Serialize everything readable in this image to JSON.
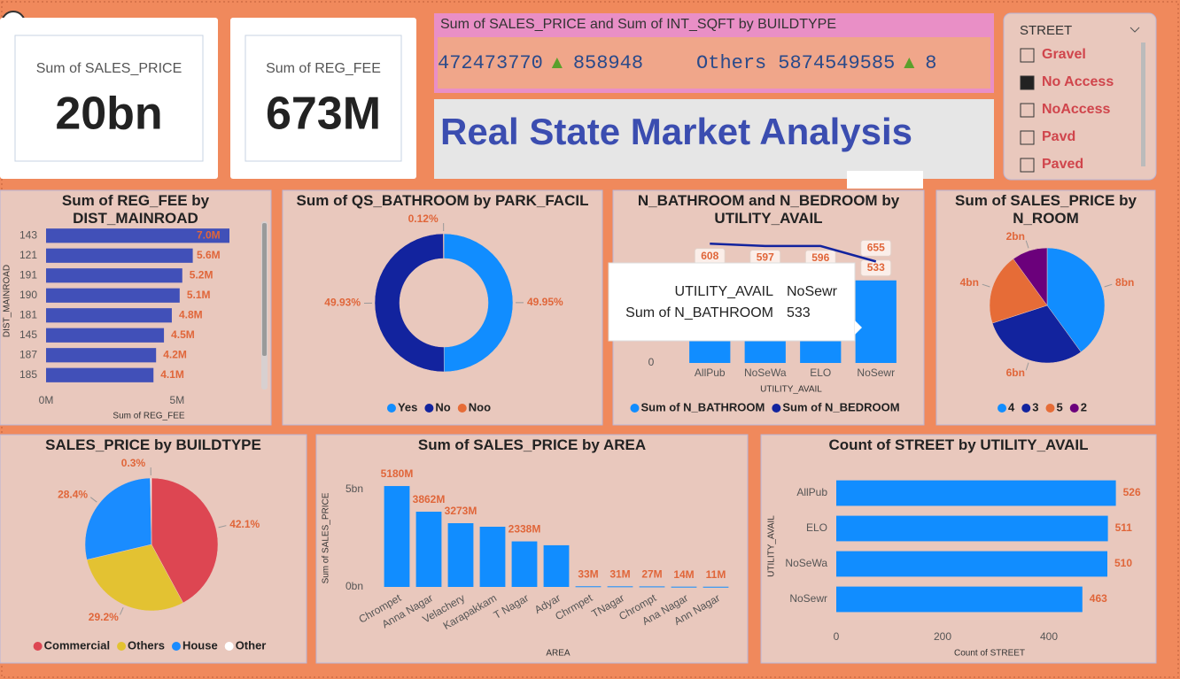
{
  "cards": [
    {
      "label": "Sum of SALES_PRICE",
      "value": "20bn"
    },
    {
      "label": "Sum of REG_FEE",
      "value": "673M"
    }
  ],
  "ticker": {
    "title": "Sum of SALES_PRICE and Sum of INT_SQFT by BUILDTYPE",
    "items": [
      {
        "value": "472473770",
        "change": "858948"
      },
      {
        "name": "Others",
        "value": "5874549585",
        "change": "8"
      }
    ]
  },
  "title": "Real State Market Analysis",
  "slicer": {
    "title": "STREET",
    "items": [
      {
        "label": "Gravel",
        "checked": false
      },
      {
        "label": "No Access",
        "checked": true
      },
      {
        "label": "NoAccess",
        "checked": false
      },
      {
        "label": "Pavd",
        "checked": false
      },
      {
        "label": "Paved",
        "checked": false
      }
    ]
  },
  "chart_data": [
    {
      "type": "hbar",
      "title": "Sum of REG_FEE by DIST_MAINROAD",
      "categories": [
        "143",
        "121",
        "191",
        "190",
        "181",
        "145",
        "187",
        "185"
      ],
      "values": [
        7.0,
        5.6,
        5.2,
        5.1,
        4.8,
        4.5,
        4.2,
        4.1
      ],
      "value_labels": [
        "7.0M",
        "5.6M",
        "5.2M",
        "5.1M",
        "4.8M",
        "4.5M",
        "4.2M",
        "4.1M"
      ],
      "color": "#4150b8",
      "xlim": [
        0,
        7
      ],
      "xticks": [
        {
          "value": 0,
          "label": "0M"
        },
        {
          "value": 5,
          "label": "5M"
        }
      ],
      "x_label": "Sum of REG_FEE",
      "y_label": "DIST_MAINROAD"
    },
    {
      "type": "donut",
      "title": "Sum of QS_BATHROOM by PARK_FACIL",
      "categories": [
        "Yes",
        "No",
        "Noo"
      ],
      "values": [
        49.95,
        49.93,
        0.12
      ],
      "value_labels": [
        "49.95%",
        "49.93%",
        "0.12%"
      ],
      "colors": [
        "#118dff",
        "#12239e",
        "#e66c37"
      ]
    },
    {
      "type": "combo",
      "title": "N_BATHROOM and N_BEDROOM by UTILITY_AVAIL",
      "categories": [
        "AllPub",
        "NoSeWa",
        "ELO",
        "NoSewr"
      ],
      "series": [
        {
          "name": "Sum of N_BATHROOM",
          "type": "bar",
          "color": "#118dff",
          "values": [
            608,
            597,
            596,
            533
          ]
        },
        {
          "name": "Sum of N_BEDROOM",
          "type": "line",
          "color": "#12239e",
          "values": [
            770,
            755,
            755,
            655
          ],
          "value_labels": [
            null,
            null,
            null,
            "655"
          ]
        }
      ],
      "ylim": [
        0,
        800
      ],
      "yticks": [
        0
      ],
      "x_label": "UTILITY_AVAIL"
    },
    {
      "type": "pie",
      "title": "Sum of SALES_PRICE by N_ROOM",
      "categories": [
        "4",
        "3",
        "5",
        "2"
      ],
      "values": [
        8,
        6,
        4,
        2
      ],
      "value_labels": [
        "8bn",
        "6bn",
        "4bn",
        "2bn"
      ],
      "colors": [
        "#118dff",
        "#12239e",
        "#e66c37",
        "#6b007b"
      ]
    },
    {
      "type": "pie",
      "title": "SALES_PRICE by BUILDTYPE",
      "categories": [
        "Commercial",
        "Others",
        "House",
        "Other"
      ],
      "values": [
        42.1,
        29.2,
        28.4,
        0.3
      ],
      "value_labels": [
        "42.1%",
        "29.2%",
        "28.4%",
        "0.3%"
      ],
      "colors": [
        "#dd4652",
        "#e3c232",
        "#1a8cff",
        "#ffffff"
      ]
    },
    {
      "type": "column",
      "title": "Sum of SALES_PRICE by AREA",
      "categories": [
        "Chrompet",
        "Anna Nagar",
        "Velachery",
        "Karapakkam",
        "T Nagar",
        "Adyar",
        "Chrmpet",
        "TNagar",
        "Chrompt",
        "Ana Nagar",
        "Ann Nagar"
      ],
      "values": [
        5.18,
        3.862,
        3.273,
        3.09,
        2.338,
        2.14,
        0.033,
        0.031,
        0.027,
        0.014,
        0.011
      ],
      "value_labels": [
        "5180M",
        "3862M",
        "3273M",
        null,
        "2338M",
        null,
        "33M",
        "31M",
        "27M",
        "14M",
        "11M"
      ],
      "color": "#118dff",
      "ylim": [
        0,
        5.5
      ],
      "yticks": [
        {
          "value": 0,
          "label": "0bn"
        },
        {
          "value": 5,
          "label": "5bn"
        }
      ],
      "x_label": "AREA",
      "y_label": "Sum of SALES_PRICE"
    },
    {
      "type": "hbar",
      "title": "Count of STREET by UTILITY_AVAIL",
      "categories": [
        "AllPub",
        "ELO",
        "NoSeWa",
        "NoSewr"
      ],
      "values": [
        526,
        511,
        510,
        463
      ],
      "color": "#118dff",
      "xlim": [
        0,
        530
      ],
      "xticks": [
        0,
        200,
        400
      ],
      "x_label": "Count of STREET",
      "y_label": "UTILITY_AVAIL"
    }
  ],
  "tooltip": {
    "rows": [
      {
        "label": "UTILITY_AVAIL",
        "value": "NoSewr"
      },
      {
        "label": "Sum of N_BATHROOM",
        "value": "533"
      }
    ]
  }
}
